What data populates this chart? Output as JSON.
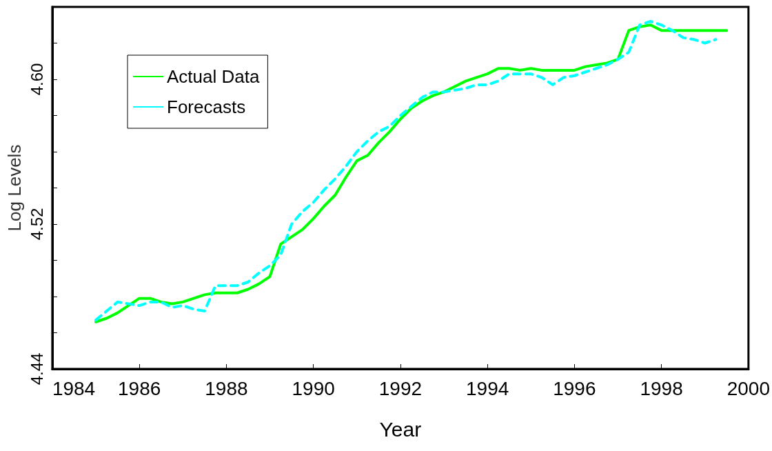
{
  "chart_data": {
    "type": "line",
    "xlabel": "Year",
    "ylabel": "Log Levels",
    "xlim": [
      1984,
      2000
    ],
    "xticks": [
      1984,
      1986,
      1988,
      1990,
      1992,
      1994,
      1996,
      1998,
      2000
    ],
    "ylim": [
      4.44,
      4.64
    ],
    "yticks": [
      4.44,
      {
        "value": 4.46,
        "label": null
      },
      {
        "value": 4.48,
        "label": null
      },
      {
        "value": 4.5,
        "label": null
      },
      4.52,
      {
        "value": 4.54,
        "label": null
      },
      {
        "value": 4.56,
        "label": null
      },
      {
        "value": 4.58,
        "label": null
      },
      {
        "value": 4.6,
        "label": "4.60"
      },
      {
        "value": 4.62,
        "label": null
      }
    ],
    "grid": false,
    "legend": "top left",
    "marker": "none",
    "x": [
      1985,
      1985.25,
      1985.5,
      1985.75,
      1986,
      1986.25,
      1986.5,
      1986.75,
      1987,
      1987.25,
      1987.5,
      1987.75,
      1988,
      1988.25,
      1988.5,
      1988.75,
      1989,
      1989.25,
      1989.5,
      1989.75,
      1990,
      1990.25,
      1990.5,
      1990.75,
      1991,
      1991.25,
      1991.5,
      1991.75,
      1992,
      1992.25,
      1992.5,
      1992.75,
      1993,
      1993.25,
      1993.5,
      1993.75,
      1994,
      1994.25,
      1994.5,
      1994.75,
      1995,
      1995.25,
      1995.5,
      1995.75,
      1996,
      1996.25,
      1996.5,
      1996.75,
      1997,
      1997.25,
      1997.5,
      1997.75,
      1998,
      1998.25,
      1998.5,
      1998.75,
      1999,
      1999.25,
      1999.5
    ],
    "series": [
      {
        "name": "Actual Data",
        "color": "#00ff00",
        "line_style": "solid",
        "values": [
          4.466,
          4.468,
          4.471,
          4.475,
          4.479,
          4.479,
          4.477,
          4.476,
          4.477,
          4.479,
          4.481,
          4.482,
          4.482,
          4.482,
          4.484,
          4.487,
          4.491,
          4.509,
          4.513,
          4.517,
          4.523,
          4.53,
          4.536,
          4.546,
          4.555,
          4.558,
          4.565,
          4.571,
          4.578,
          4.584,
          4.588,
          4.591,
          4.593,
          4.596,
          4.599,
          4.601,
          4.603,
          4.606,
          4.606,
          4.605,
          4.606,
          4.605,
          4.605,
          4.605,
          4.605,
          4.607,
          4.608,
          4.609,
          4.611,
          4.627,
          4.629,
          4.63,
          4.627,
          4.627,
          4.627,
          4.627,
          4.627,
          4.627,
          4.627
        ]
      },
      {
        "name": "Forecasts",
        "color": "#00ffff",
        "line_style": "dashed",
        "values": [
          4.467,
          4.472,
          4.477,
          4.476,
          4.475,
          4.477,
          4.477,
          4.474,
          4.475,
          4.473,
          4.472,
          4.486,
          4.486,
          4.486,
          4.488,
          4.493,
          4.497,
          4.503,
          4.52,
          4.527,
          4.532,
          4.539,
          4.545,
          4.552,
          4.56,
          4.566,
          4.571,
          4.574,
          4.58,
          4.585,
          4.59,
          4.593,
          4.593,
          4.594,
          4.595,
          4.597,
          4.597,
          4.599,
          4.603,
          4.603,
          4.603,
          4.601,
          4.597,
          4.601,
          4.602,
          4.604,
          4.606,
          4.608,
          4.611,
          4.615,
          4.63,
          4.632,
          4.63,
          4.627,
          4.623,
          4.622,
          4.62,
          4.622,
          null
        ]
      }
    ]
  }
}
